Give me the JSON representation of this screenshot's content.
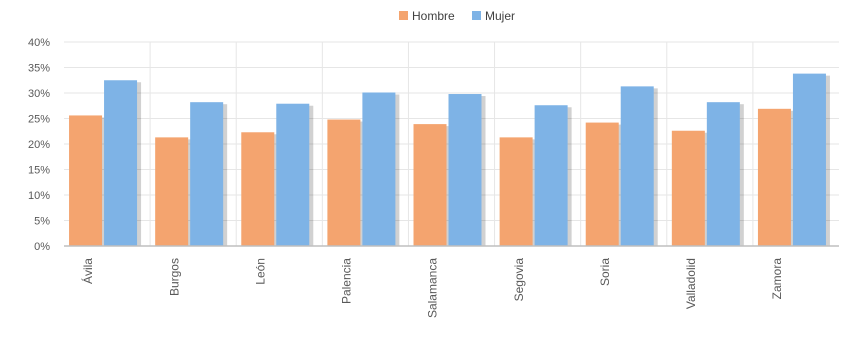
{
  "chart_data": {
    "type": "bar",
    "categories": [
      "Ávila",
      "Burgos",
      "León",
      "Palencia",
      "Salamanca",
      "Segovia",
      "Soria",
      "Valladolid",
      "Zamora"
    ],
    "series": [
      {
        "name": "Hombre",
        "color": "#f4a46f",
        "values": [
          25.6,
          21.3,
          22.3,
          24.8,
          23.9,
          21.3,
          24.2,
          22.6,
          26.9
        ]
      },
      {
        "name": "Mujer",
        "color": "#7eb3e6",
        "values": [
          32.5,
          28.2,
          27.9,
          30.1,
          29.8,
          27.6,
          31.3,
          28.2,
          33.8
        ]
      }
    ],
    "ylim": [
      0,
      40
    ],
    "yticks": [
      "0%",
      "5%",
      "10%",
      "15%",
      "20%",
      "25%",
      "30%",
      "35%",
      "40%"
    ],
    "ytick_values": [
      0,
      5,
      10,
      15,
      20,
      25,
      30,
      35,
      40
    ],
    "title": "",
    "xlabel": "",
    "ylabel": "",
    "legend_position": "top-right",
    "grid": true
  }
}
